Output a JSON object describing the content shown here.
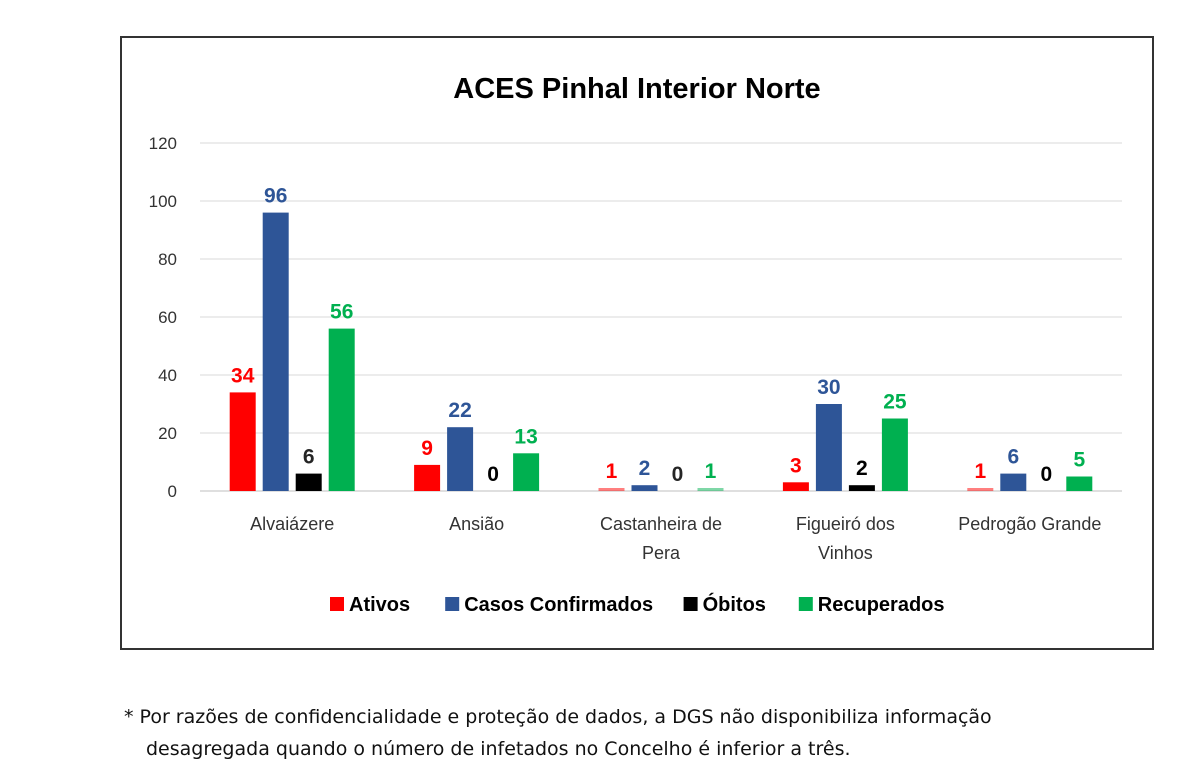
{
  "chart_data": {
    "type": "bar",
    "title": "ACES Pinhal Interior Norte",
    "categories": [
      [
        "Alvaiázere"
      ],
      [
        "Ansião"
      ],
      [
        "Castanheira de",
        "Pera"
      ],
      [
        "Figueiró dos",
        "Vinhos"
      ],
      [
        "Pedrogão Grande"
      ]
    ],
    "series": [
      {
        "name": "Ativos",
        "color": "#ff0000",
        "label_color": "#ff0000",
        "values": [
          34,
          9,
          1,
          3,
          1
        ]
      },
      {
        "name": "Casos Confirmados",
        "color": "#2e5597",
        "label_color": "#2e5597",
        "values": [
          96,
          22,
          2,
          30,
          6
        ]
      },
      {
        "name": "Óbitos",
        "color": "#000000",
        "label_color": "#000000",
        "values": [
          6,
          0,
          0,
          2,
          0
        ]
      },
      {
        "name": "Recuperados",
        "color": "#00b050",
        "label_color": "#00b050",
        "values": [
          56,
          13,
          1,
          25,
          5
        ]
      }
    ],
    "faded_points": [
      [
        0,
        2
      ],
      [
        2,
        2
      ],
      [
        3,
        4
      ]
    ],
    "ylim": [
      0,
      120
    ],
    "yticks": [
      "0",
      "20",
      "40",
      "60",
      "80",
      "100",
      "120"
    ],
    "grid": true,
    "legend_position": "bottom"
  },
  "footnote": {
    "line1": "* Por razões de confidencialidade e proteção de dados, a DGS não disponibiliza informação",
    "line2": "desagregada quando o número de infetados no Concelho é inferior a três."
  }
}
